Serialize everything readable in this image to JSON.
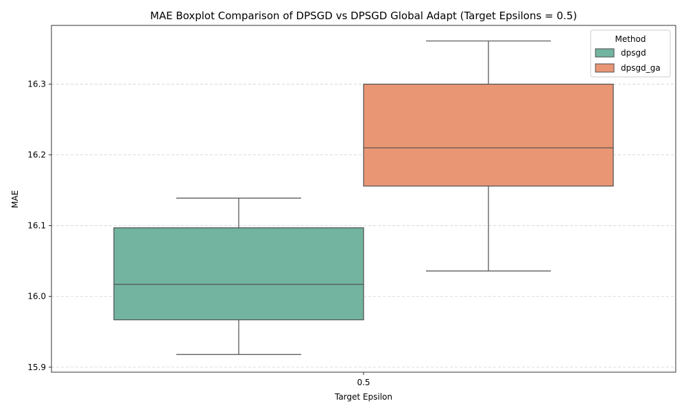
{
  "chart_data": {
    "type": "box",
    "title": "MAE Boxplot Comparison of DPSGD vs DPSGD Global Adapt (Target Epsilons = 0.5)",
    "xlabel": "Target Epsilon",
    "ylabel": "MAE",
    "categories": [
      "0.5"
    ],
    "ylim": [
      15.893,
      16.383
    ],
    "yticks": [
      15.9,
      16.0,
      16.1,
      16.2,
      16.3
    ],
    "ytick_labels": [
      "15.9",
      "16.0",
      "16.1",
      "16.2",
      "16.3"
    ],
    "grid": "horizontal dashed",
    "legend": {
      "title": "Method",
      "position": "upper-right"
    },
    "series": [
      {
        "name": "dpsgd",
        "color": "#72b4a0",
        "stats": {
          "whisker_low": 15.918,
          "q1": 15.967,
          "median": 16.017,
          "q3": 16.097,
          "whisker_high": 16.139
        }
      },
      {
        "name": "dpsgd_ga",
        "color": "#e99675",
        "stats": {
          "whisker_low": 16.036,
          "q1": 16.156,
          "median": 16.21,
          "q3": 16.3,
          "whisker_high": 16.361
        }
      }
    ]
  }
}
